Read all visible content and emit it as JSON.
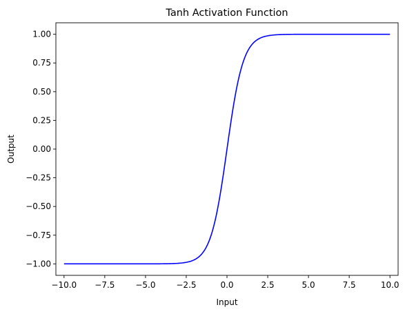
{
  "chart_data": {
    "type": "line",
    "title": "Tanh Activation Function",
    "xlabel": "Input",
    "ylabel": "Output",
    "xlim": [
      -10.5,
      10.5
    ],
    "ylim": [
      -1.1,
      1.1
    ],
    "xticks": [
      -10.0,
      -7.5,
      -5.0,
      -2.5,
      0.0,
      2.5,
      5.0,
      7.5,
      10.0
    ],
    "xtick_labels": [
      "−10.0",
      "−7.5",
      "−5.0",
      "−2.5",
      "0.0",
      "2.5",
      "5.0",
      "7.5",
      "10.0"
    ],
    "yticks": [
      -1.0,
      -0.75,
      -0.5,
      -0.25,
      0.0,
      0.25,
      0.5,
      0.75,
      1.0
    ],
    "ytick_labels": [
      "−1.00",
      "−0.75",
      "−0.50",
      "−0.25",
      "0.00",
      "0.25",
      "0.50",
      "0.75",
      "1.00"
    ],
    "grid": false,
    "series": [
      {
        "color": "#0000ff",
        "x": [
          -10,
          -5,
          -4,
          -3,
          -2.5,
          -2,
          -1.75,
          -1.5,
          -1.25,
          -1,
          -0.75,
          -0.5,
          -0.25,
          0,
          0.25,
          0.5,
          0.75,
          1,
          1.25,
          1.5,
          1.75,
          2,
          2.5,
          3,
          4,
          5,
          10
        ],
        "y": [
          -1.0,
          -0.9999,
          -0.9993,
          -0.9951,
          -0.9866,
          -0.964,
          -0.9414,
          -0.9051,
          -0.8483,
          -0.7616,
          -0.6351,
          -0.4621,
          -0.2449,
          0.0,
          0.2449,
          0.4621,
          0.6351,
          0.7616,
          0.8483,
          0.9051,
          0.9414,
          0.964,
          0.9866,
          0.9951,
          0.9993,
          0.9999,
          1.0
        ]
      }
    ]
  }
}
